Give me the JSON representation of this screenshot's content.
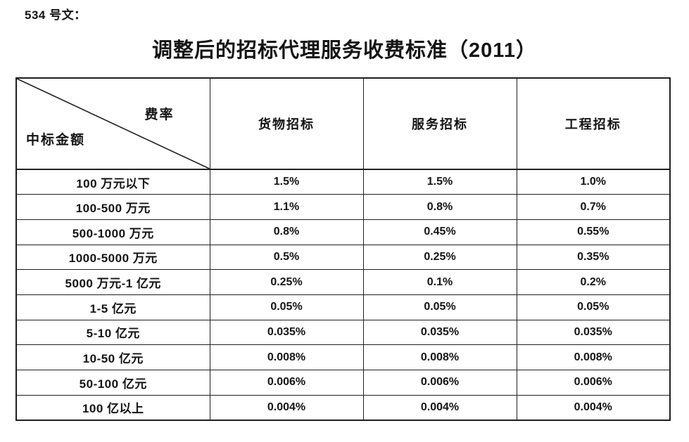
{
  "doc": {
    "doc_number": "534 号文：",
    "title": "调整后的招标代理服务收费标准（2011）"
  },
  "table": {
    "corner": {
      "top_right": "费率",
      "bottom_left": "中标金额"
    },
    "columns": [
      "货物招标",
      "服务招标",
      "工程招标"
    ],
    "rows": [
      {
        "label": "100 万元以下",
        "values": [
          "1.5%",
          "1.5%",
          "1.0%"
        ]
      },
      {
        "label": "100-500 万元",
        "values": [
          "1.1%",
          "0.8%",
          "0.7%"
        ]
      },
      {
        "label": "500-1000 万元",
        "values": [
          "0.8%",
          "0.45%",
          "0.55%"
        ]
      },
      {
        "label": "1000-5000 万元",
        "values": [
          "0.5%",
          "0.25%",
          "0.35%"
        ]
      },
      {
        "label": "5000 万元-1 亿元",
        "values": [
          "0.25%",
          "0.1%",
          "0.2%"
        ]
      },
      {
        "label": "1-5 亿元",
        "values": [
          "0.05%",
          "0.05%",
          "0.05%"
        ]
      },
      {
        "label": "5-10 亿元",
        "values": [
          "0.035%",
          "0.035%",
          "0.035%"
        ]
      },
      {
        "label": "10-50 亿元",
        "values": [
          "0.008%",
          "0.008%",
          "0.008%"
        ]
      },
      {
        "label": "50-100 亿元",
        "values": [
          "0.006%",
          "0.006%",
          "0.006%"
        ]
      },
      {
        "label": "100 亿以上",
        "values": [
          "0.004%",
          "0.004%",
          "0.004%"
        ]
      }
    ]
  },
  "colors": {
    "background": "#ffffff",
    "text": "#141414",
    "border": "#1f1f1f"
  }
}
